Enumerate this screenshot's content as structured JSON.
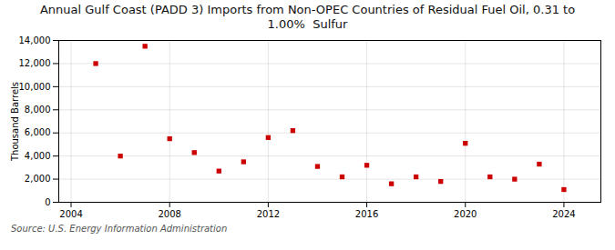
{
  "chart_data": {
    "type": "scatter",
    "title": "Annual Gulf Coast (PADD 3) Imports from Non-OPEC Countries of Residual Fuel Oil, 0.31 to\n1.00%  Sulfur",
    "ylabel": "Thousand Barrels",
    "source": "Source: U.S. Energy Information Administration",
    "x": [
      2005,
      2006,
      2007,
      2008,
      2009,
      2010,
      2011,
      2012,
      2013,
      2014,
      2015,
      2016,
      2017,
      2018,
      2019,
      2020,
      2021,
      2022,
      2023,
      2024
    ],
    "values": [
      12000,
      4000,
      13500,
      5500,
      4300,
      2700,
      3500,
      5600,
      6200,
      3100,
      2200,
      3200,
      1600,
      2200,
      1800,
      5100,
      2200,
      2000,
      3300,
      1100
    ],
    "color": "#cc0000",
    "marker": "square",
    "xlim": [
      2003.5,
      2025.5
    ],
    "xticks": [
      2004,
      2008,
      2012,
      2016,
      2020,
      2024
    ],
    "ylim": [
      0,
      14000
    ],
    "yticks": [
      0,
      {
        "value": 2000,
        "label": "2,000"
      },
      {
        "value": 4000,
        "label": "4,000"
      },
      {
        "value": 6000,
        "label": "6,000"
      },
      {
        "value": 8000,
        "label": "8,000"
      },
      {
        "value": 10000,
        "label": "10,000"
      },
      {
        "value": 12000,
        "label": "12,000"
      },
      {
        "value": 14000,
        "label": "14,000"
      }
    ],
    "grid": true
  }
}
